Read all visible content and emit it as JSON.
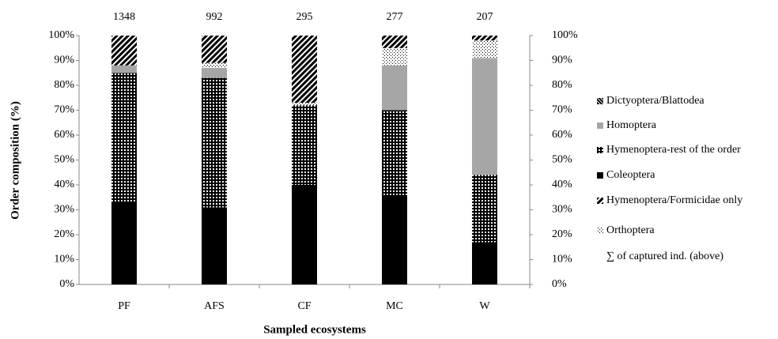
{
  "chart_data": {
    "type": "stacked_bar_percent",
    "y_label": "Order composition (%)",
    "x_label": "Sampled ecosystems",
    "categories": [
      "PF",
      "AFS",
      "CF",
      "MC",
      "W"
    ],
    "totals": [
      1348,
      992,
      295,
      277,
      207
    ],
    "totals_label": "∑ of captured ind. (above)",
    "series": [
      {
        "name": "Dictyoptera/Blattodea",
        "color": "#000000",
        "pattern": "hatch-dense",
        "values": [
          0,
          0,
          0,
          0,
          0
        ]
      },
      {
        "name": "Homoptera",
        "color": "#a6a6a6",
        "pattern": "solid",
        "values": [
          3,
          4,
          0,
          18,
          47
        ]
      },
      {
        "name": "Hymenoptera-rest  of the order",
        "color": "#000000",
        "pattern": "grid",
        "values": [
          52,
          52,
          32,
          34,
          27
        ]
      },
      {
        "name": "Coleoptera",
        "color": "#000000",
        "pattern": "solid",
        "values": [
          33,
          31,
          40,
          36,
          17
        ]
      },
      {
        "name": "Hymenoptera/Formicidae  only",
        "color": "#000000",
        "pattern": "hatch",
        "values": [
          12,
          11,
          27,
          5,
          2
        ]
      },
      {
        "name": "Orthoptera",
        "color": "#000000",
        "pattern": "dots",
        "values": [
          0,
          2,
          1,
          7,
          7
        ]
      }
    ],
    "ylim": [
      0,
      100
    ],
    "yticks": [
      {
        "value": 0,
        "label": "0%"
      },
      {
        "value": 10,
        "label": "10%"
      },
      {
        "value": 20,
        "label": "20%"
      },
      {
        "value": 30,
        "label": "30%"
      },
      {
        "value": 40,
        "label": "40%"
      },
      {
        "value": 50,
        "label": "50%"
      },
      {
        "value": 60,
        "label": "60%"
      },
      {
        "value": 70,
        "label": "70%"
      },
      {
        "value": 80,
        "label": "80%"
      },
      {
        "value": 90,
        "label": "90%"
      },
      {
        "value": 100,
        "label": "100%"
      }
    ],
    "y2lim": [
      0,
      100
    ],
    "y2ticks": [
      {
        "value": 0,
        "label": "0%"
      },
      {
        "value": 10,
        "label": "10%"
      },
      {
        "value": 20,
        "label": "20%"
      },
      {
        "value": 30,
        "label": "30%"
      },
      {
        "value": 40,
        "label": "40%"
      },
      {
        "value": 50,
        "label": "50%"
      },
      {
        "value": 60,
        "label": "60%"
      },
      {
        "value": 70,
        "label": "70%"
      },
      {
        "value": 80,
        "label": "80%"
      },
      {
        "value": 90,
        "label": "90%"
      },
      {
        "value": 100,
        "label": "100%"
      }
    ],
    "legend": "right"
  }
}
